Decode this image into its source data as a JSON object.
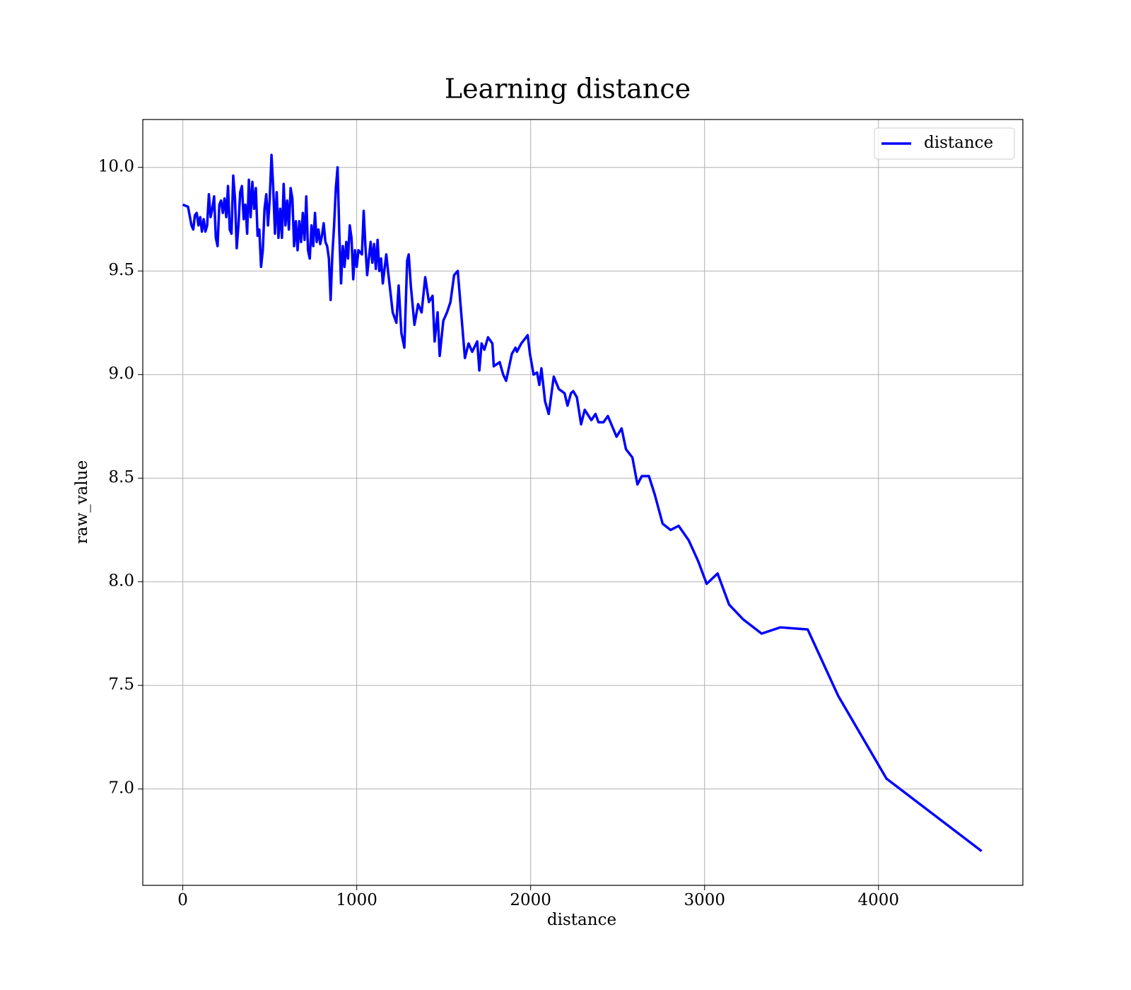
{
  "chart_data": {
    "type": "line",
    "title": "Learning distance",
    "x_label": "distance",
    "y_label": "raw_value",
    "x": [
      0,
      30,
      50,
      60,
      70,
      80,
      90,
      100,
      110,
      120,
      130,
      140,
      150,
      160,
      170,
      180,
      190,
      200,
      210,
      220,
      230,
      240,
      250,
      260,
      270,
      280,
      290,
      300,
      310,
      320,
      330,
      340,
      350,
      360,
      370,
      380,
      390,
      400,
      410,
      420,
      430,
      440,
      450,
      460,
      470,
      480,
      490,
      500,
      510,
      520,
      530,
      540,
      550,
      560,
      570,
      580,
      590,
      600,
      610,
      620,
      630,
      640,
      650,
      660,
      670,
      680,
      690,
      700,
      710,
      720,
      730,
      740,
      750,
      760,
      770,
      780,
      790,
      800,
      810,
      820,
      830,
      840,
      850,
      860,
      870,
      880,
      890,
      900,
      910,
      920,
      930,
      940,
      950,
      960,
      970,
      980,
      990,
      1000,
      1010,
      1030,
      1040,
      1050,
      1060,
      1080,
      1090,
      1100,
      1110,
      1120,
      1130,
      1140,
      1150,
      1170,
      1180,
      1207,
      1228,
      1241,
      1257,
      1274,
      1290,
      1299,
      1311,
      1332,
      1353,
      1373,
      1394,
      1415,
      1436,
      1448,
      1465,
      1477,
      1498,
      1519,
      1539,
      1560,
      1581,
      1622,
      1643,
      1664,
      1693,
      1705,
      1718,
      1734,
      1755,
      1780,
      1788,
      1822,
      1842,
      1859,
      1892,
      1913,
      1921,
      1946,
      1983,
      1996,
      2017,
      2037,
      2050,
      2062,
      2083,
      2104,
      2133,
      2162,
      2195,
      2212,
      2232,
      2245,
      2266,
      2290,
      2311,
      2349,
      2373,
      2390,
      2419,
      2444,
      2494,
      2523,
      2548,
      2585,
      2614,
      2639,
      2680,
      2714,
      2759,
      2805,
      2851,
      2909,
      2963,
      3012,
      3075,
      3141,
      3220,
      3328,
      3436,
      3593,
      3768,
      4046,
      4593
    ],
    "series": [
      {
        "name": "distance",
        "color": "#0000ff",
        "values": [
          9.82,
          9.81,
          9.72,
          9.7,
          9.77,
          9.78,
          9.72,
          9.76,
          9.69,
          9.75,
          9.69,
          9.72,
          9.87,
          9.76,
          9.8,
          9.86,
          9.66,
          9.62,
          9.82,
          9.84,
          9.78,
          9.85,
          9.76,
          9.91,
          9.7,
          9.68,
          9.96,
          9.85,
          9.61,
          9.72,
          9.88,
          9.91,
          9.75,
          9.82,
          9.68,
          9.94,
          9.76,
          9.93,
          9.8,
          9.9,
          9.67,
          9.7,
          9.52,
          9.6,
          9.8,
          9.87,
          9.72,
          9.85,
          10.06,
          9.9,
          9.68,
          9.88,
          9.66,
          9.8,
          9.66,
          9.92,
          9.72,
          9.84,
          9.7,
          9.9,
          9.85,
          9.62,
          9.74,
          9.6,
          9.74,
          9.64,
          9.78,
          9.65,
          9.86,
          9.6,
          9.56,
          9.72,
          9.62,
          9.78,
          9.64,
          9.7,
          9.63,
          9.67,
          9.73,
          9.64,
          9.62,
          9.56,
          9.36,
          9.58,
          9.72,
          9.9,
          10.0,
          9.68,
          9.44,
          9.62,
          9.52,
          9.64,
          9.56,
          9.72,
          9.66,
          9.46,
          9.6,
          9.52,
          9.6,
          9.58,
          9.79,
          9.62,
          9.48,
          9.64,
          9.54,
          9.63,
          9.51,
          9.65,
          9.5,
          9.56,
          9.44,
          9.58,
          9.5,
          9.3,
          9.25,
          9.43,
          9.2,
          9.13,
          9.55,
          9.58,
          9.43,
          9.24,
          9.34,
          9.3,
          9.47,
          9.35,
          9.38,
          9.16,
          9.3,
          9.09,
          9.26,
          9.3,
          9.35,
          9.48,
          9.5,
          9.08,
          9.15,
          9.11,
          9.16,
          9.02,
          9.15,
          9.12,
          9.18,
          9.15,
          9.04,
          9.06,
          9.0,
          8.97,
          9.1,
          9.13,
          9.11,
          9.15,
          9.19,
          9.1,
          9.0,
          9.01,
          8.95,
          9.03,
          8.87,
          8.81,
          8.99,
          8.93,
          8.91,
          8.85,
          8.91,
          8.92,
          8.89,
          8.76,
          8.83,
          8.78,
          8.81,
          8.77,
          8.77,
          8.8,
          8.7,
          8.74,
          8.64,
          8.6,
          8.47,
          8.51,
          8.51,
          8.42,
          8.28,
          8.25,
          8.27,
          8.2,
          8.1,
          7.99,
          8.04,
          7.89,
          7.82,
          7.75,
          7.78,
          7.77,
          7.45,
          7.05,
          6.7
        ]
      }
    ],
    "xlim": [
      -230,
      4830
    ],
    "xticks": [
      0,
      1000,
      2000,
      3000,
      4000
    ],
    "ylim": [
      6.535,
      10.231
    ],
    "yticks": [
      {
        "value": 7,
        "label": "7.0"
      },
      7.5,
      {
        "value": 8,
        "label": "8.0"
      },
      8.5,
      {
        "value": 9,
        "label": "9.0"
      },
      9.5,
      {
        "value": 10,
        "label": "10.0"
      }
    ],
    "grid": true,
    "legend": "upper right"
  }
}
